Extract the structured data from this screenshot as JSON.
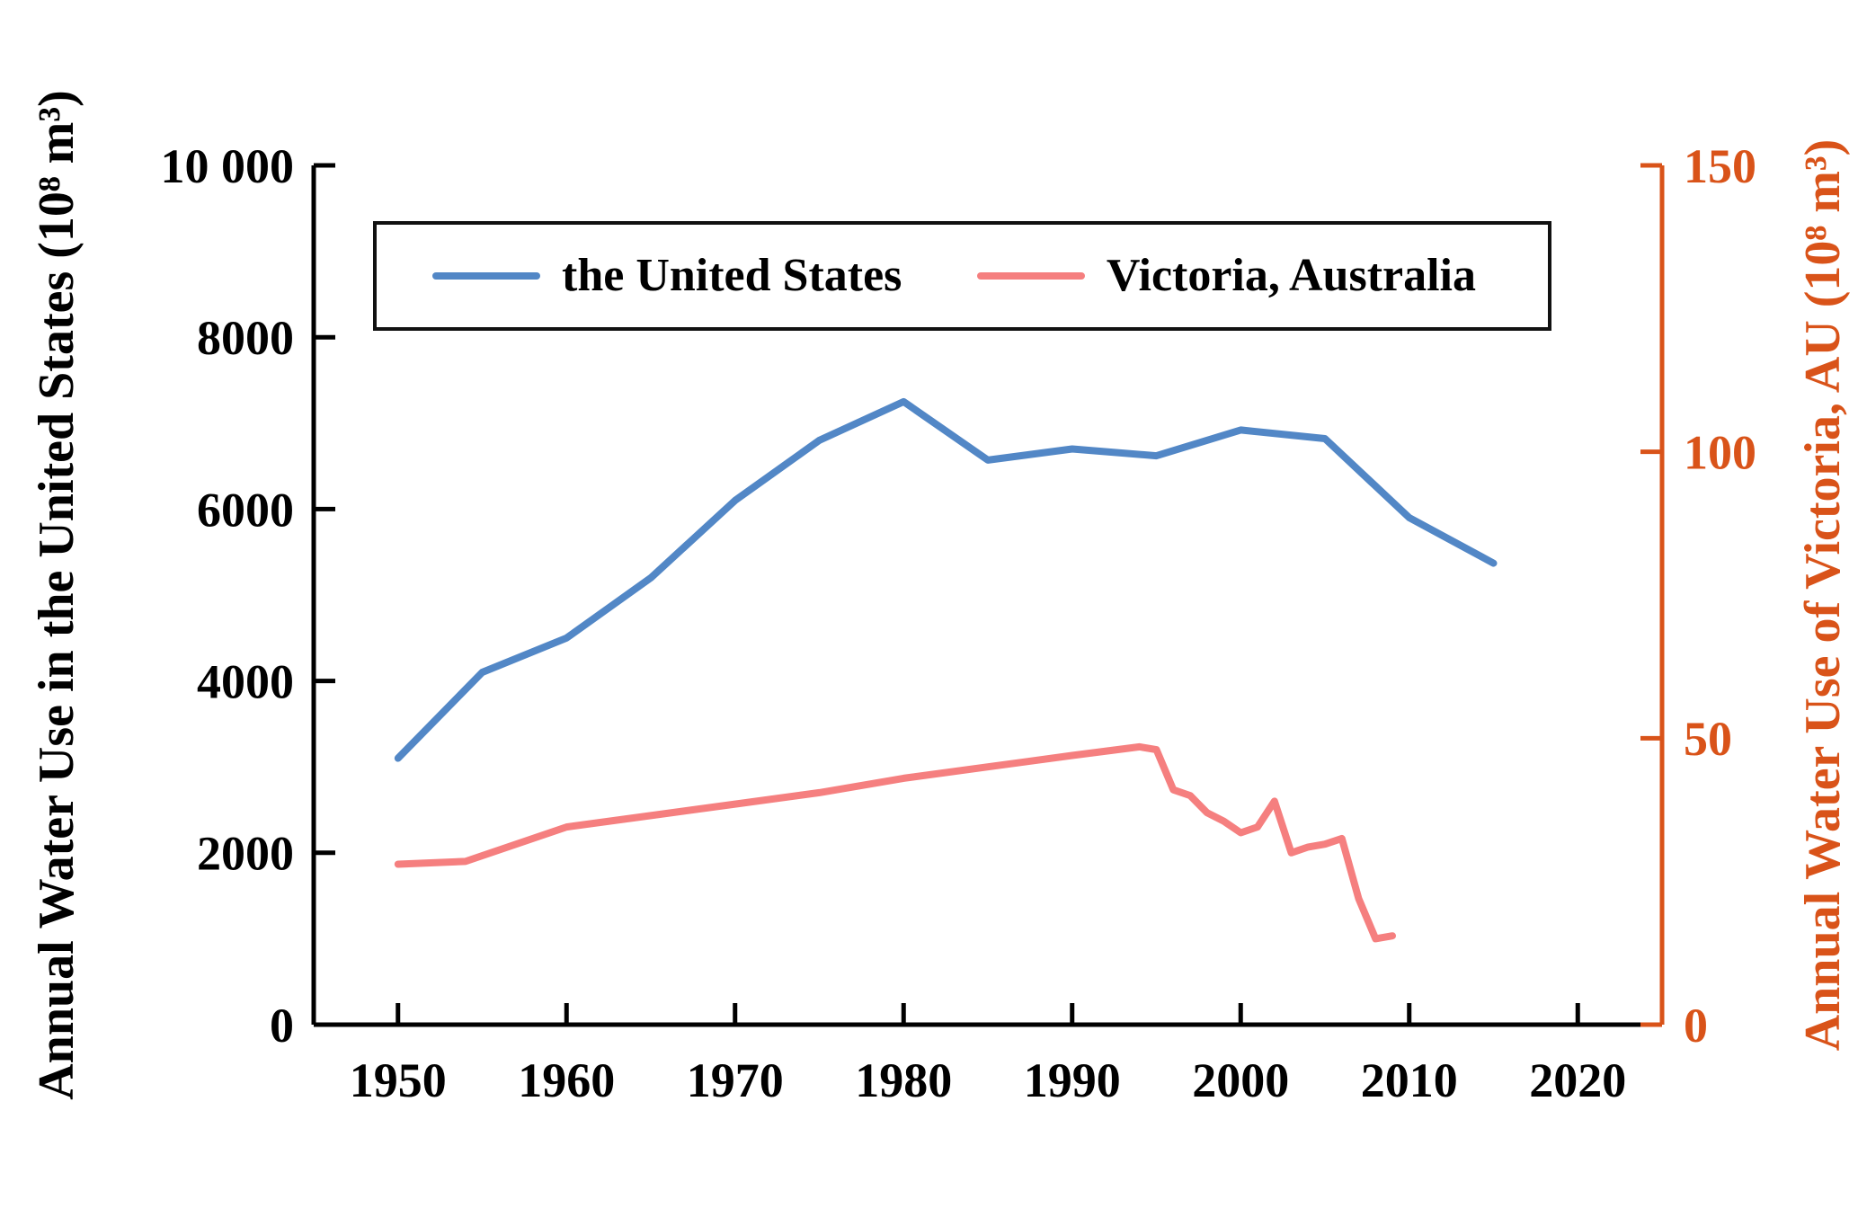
{
  "chart_data": {
    "type": "line",
    "title": "",
    "xlabel": "",
    "ylabel_left": "Annual Water Use in the United States (10⁸ m³)",
    "ylabel_right": "Annual Water Use of Victoria, AU (10⁸ m³)",
    "xlim": [
      1945,
      2025
    ],
    "ylim_left": [
      0,
      10000
    ],
    "ylim_right": [
      0,
      150
    ],
    "grid": false,
    "legend_position": "top-inside",
    "x_ticks": {
      "values": [
        1950,
        1960,
        1970,
        1980,
        1990,
        2000,
        2010,
        2020
      ],
      "labels": [
        "1950",
        "1960",
        "1970",
        "1980",
        "1990",
        "2000",
        "2010",
        "2020"
      ]
    },
    "y_ticks_left": {
      "values": [
        0,
        2000,
        4000,
        6000,
        8000,
        10000
      ],
      "labels": [
        "0",
        "2000",
        "4000",
        "6000",
        "8000",
        "10 000"
      ]
    },
    "y_ticks_right": {
      "values": [
        0,
        50,
        100,
        150
      ],
      "labels": [
        "0",
        "50",
        "100",
        "150"
      ]
    },
    "axis_colors": {
      "left": "#000000",
      "bottom": "#000000",
      "right": "#D95319"
    },
    "series": [
      {
        "name": "the United States",
        "axis": "left",
        "color": "#5287C6",
        "x": [
          1950,
          1955,
          1960,
          1965,
          1970,
          1975,
          1980,
          1985,
          1990,
          1995,
          2000,
          2005,
          2010,
          2015
        ],
        "y": [
          3100,
          4100,
          4500,
          5200,
          6100,
          6800,
          7250,
          6570,
          6700,
          6620,
          6920,
          6820,
          5900,
          5370
        ]
      },
      {
        "name": "Victoria, Australia",
        "axis": "right",
        "color": "#F57F7F",
        "x": [
          1950,
          1954,
          1960,
          1965,
          1970,
          1975,
          1980,
          1985,
          1990,
          1994,
          1995,
          1996,
          1997,
          1998,
          1999,
          2000,
          2001,
          2002,
          2003,
          2004,
          2005,
          2006,
          2007,
          2008,
          2009
        ],
        "y": [
          28,
          28.5,
          34.5,
          36.5,
          38.5,
          40.5,
          43,
          45,
          47,
          48.5,
          48,
          41,
          40,
          37,
          35.5,
          33.5,
          34.5,
          39,
          30,
          31,
          31.5,
          32.5,
          22,
          15,
          15.5
        ]
      }
    ]
  }
}
